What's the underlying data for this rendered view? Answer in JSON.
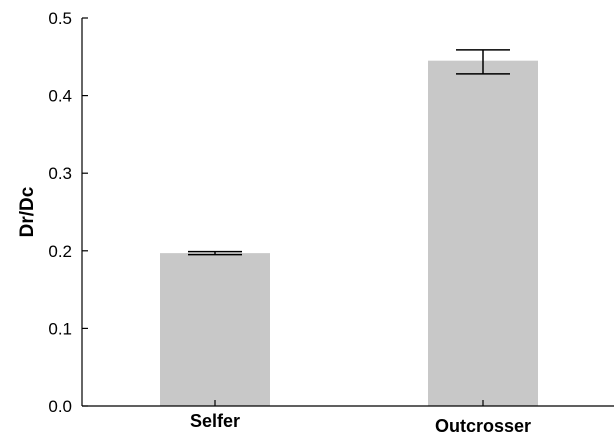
{
  "chart_data": {
    "type": "bar",
    "title": "",
    "xlabel": "",
    "ylabel": "Dr/Dc",
    "categories": [
      "Selfer",
      "Outcrosser"
    ],
    "values": [
      0.197,
      0.445
    ],
    "errors": [
      {
        "low": 0.195,
        "high": 0.199
      },
      {
        "low": 0.428,
        "high": 0.459
      }
    ],
    "ylim": [
      0,
      0.5
    ],
    "yticks": [
      "0.0",
      "0.1",
      "0.2",
      "0.3",
      "0.4",
      "0.5"
    ],
    "grid": false,
    "legend": "none",
    "colors": {
      "bar": "#c8c8c8",
      "axis": "#000000"
    }
  }
}
